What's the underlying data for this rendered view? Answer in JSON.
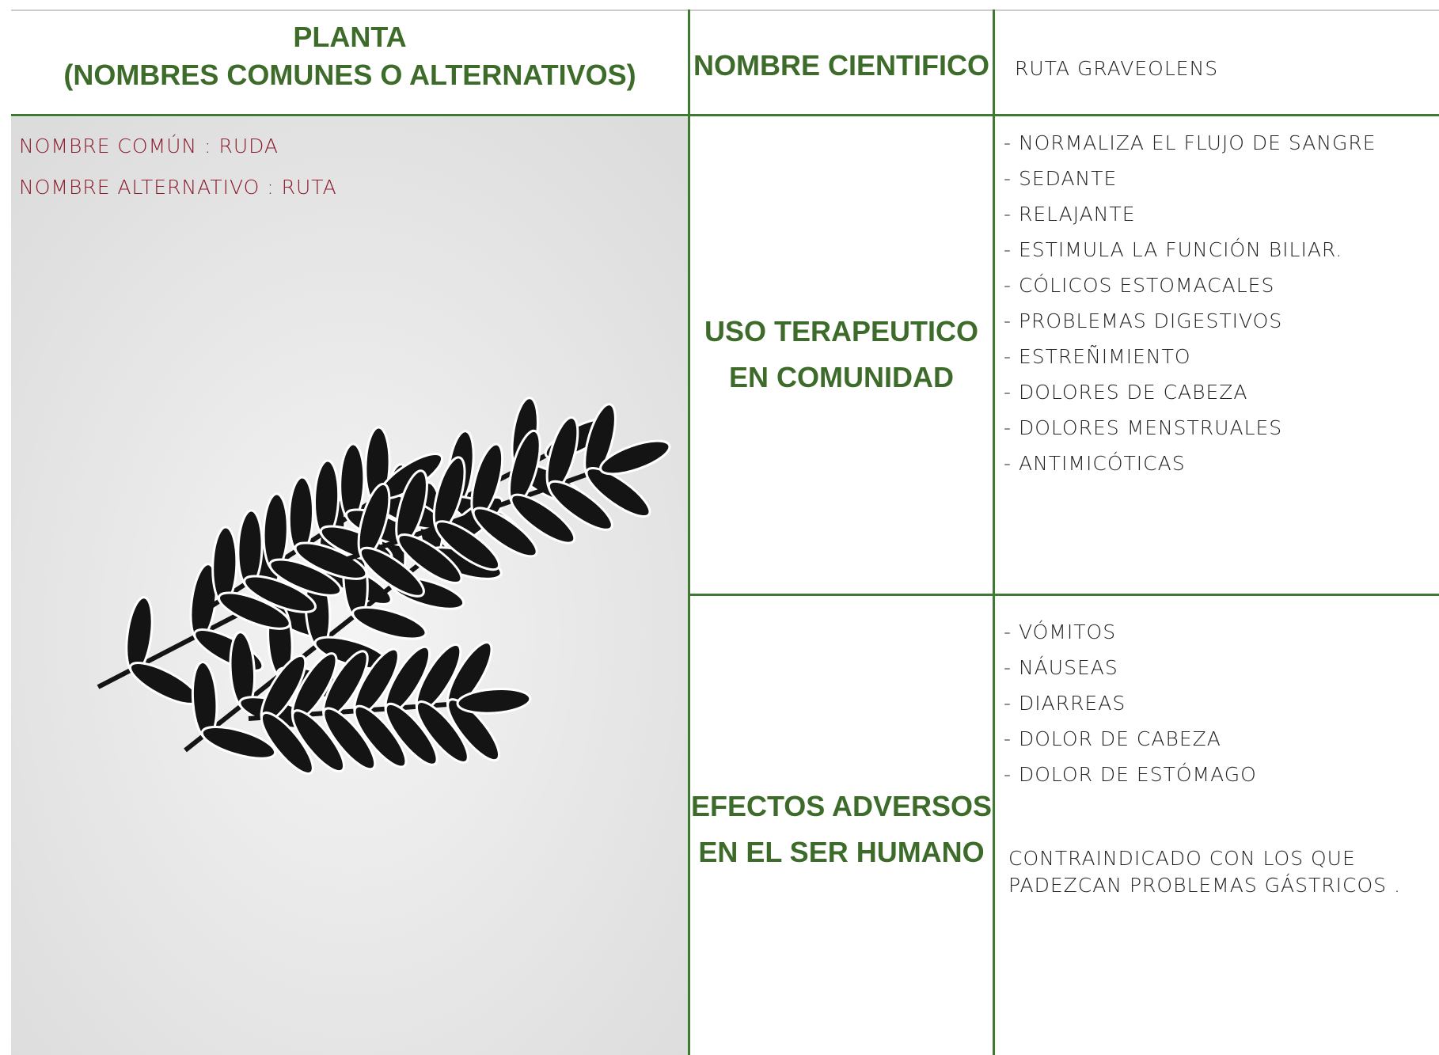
{
  "header": {
    "plant_title": "PLANTA",
    "plant_subtitle": "(NOMBRES COMUNES O ALTERNATIVOS)",
    "scientific_name_label": "NOMBRE CIENTIFICO",
    "scientific_name": "RUTA GRAVEOLENS"
  },
  "plant": {
    "common_name": "NOMBRE COMÚN : RUDA",
    "alternative_name": "NOMBRE ALTERNATIVO : RUTA"
  },
  "therapeutic_use": {
    "label_lines": [
      "USO TERAPEUTICO",
      "EN COMUNIDAD"
    ],
    "items": [
      "- NORMALIZA EL FLUJO DE SANGRE",
      "- SEDANTE",
      "- RELAJANTE",
      "- ESTIMULA LA FUNCIÓN BILIAR.",
      "- CÓLICOS ESTOMACALES",
      "- PROBLEMAS DIGESTIVOS",
      "- ESTREÑIMIENTO",
      "- DOLORES DE CABEZA",
      "- DOLORES MENSTRUALES",
      "- ANTIMICÓTICAS"
    ]
  },
  "adverse_effects": {
    "label_lines": [
      "EFECTOS ADVERSOS",
      "EN EL SER HUMANO"
    ],
    "items": [
      "- VÓMITOS",
      "- NÁUSEAS",
      "- DIARREAS",
      "- DOLOR DE CABEZA",
      "- DOLOR DE ESTÓMAGO"
    ],
    "note_lines": [
      "CONTRAINDICADO CON LOS QUE",
      "PADEZCAN PROBLEMAS GÁSTRICOS ."
    ]
  }
}
